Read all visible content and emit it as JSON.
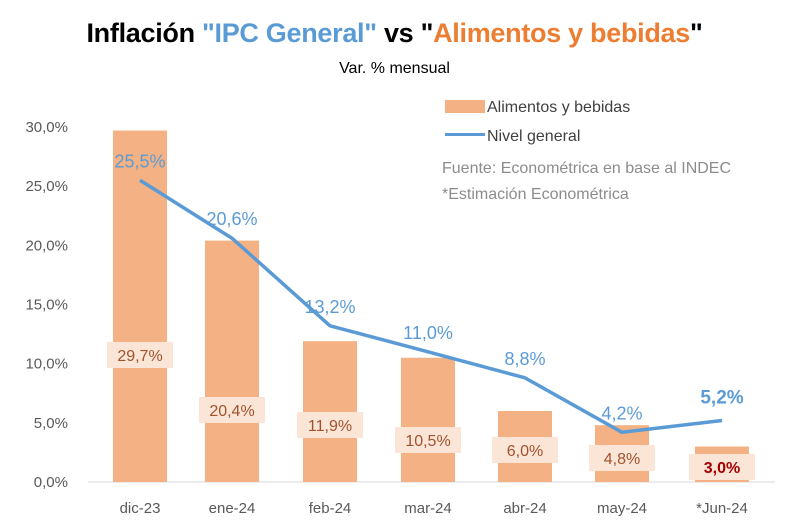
{
  "chart_data": {
    "type": "bar",
    "title_parts": [
      "Inflación ",
      "\"IPC General\"",
      " vs \"",
      "Alimentos y bebidas",
      "\""
    ],
    "subtitle": "Var. % mensual",
    "categories": [
      "dic-23",
      "ene-24",
      "feb-24",
      "mar-24",
      "abr-24",
      "may-24",
      "*Jun-24"
    ],
    "series": [
      {
        "name": "Alimentos y bebidas",
        "type": "bar",
        "color": "#f4b183",
        "values": [
          29.7,
          20.4,
          11.9,
          10.5,
          6.0,
          4.8,
          3.0
        ],
        "labels": [
          "29,7%",
          "20,4%",
          "11,9%",
          "10,5%",
          "6,0%",
          "4,8%",
          "3,0%"
        ]
      },
      {
        "name": "Nivel general",
        "type": "line",
        "color": "#5b9bd5",
        "values": [
          25.5,
          20.6,
          13.2,
          11.0,
          8.8,
          4.2,
          5.2
        ],
        "labels": [
          "25,5%",
          "20,6%",
          "13,2%",
          "11,0%",
          "8,8%",
          "4,2%",
          "5,2%"
        ]
      }
    ],
    "yticks": [
      0,
      5,
      10,
      15,
      20,
      25,
      30
    ],
    "ytick_labels": [
      "0,0%",
      "5,0%",
      "10,0%",
      "15,0%",
      "20,0%",
      "25,0%",
      "30,0%"
    ],
    "ylim": [
      0,
      30
    ],
    "grid": false,
    "legend_position": "top-right",
    "notes": [
      "Fuente: Econométrica en base al INDEC",
      "*Estimación Econométrica"
    ],
    "colors": {
      "title_ipc": "#5b9bd5",
      "title_food": "#ed7d31",
      "bar_label_box": "#fbe5d6",
      "bar_label_text": "#a0522d",
      "highlight_label": "#a50000"
    }
  }
}
